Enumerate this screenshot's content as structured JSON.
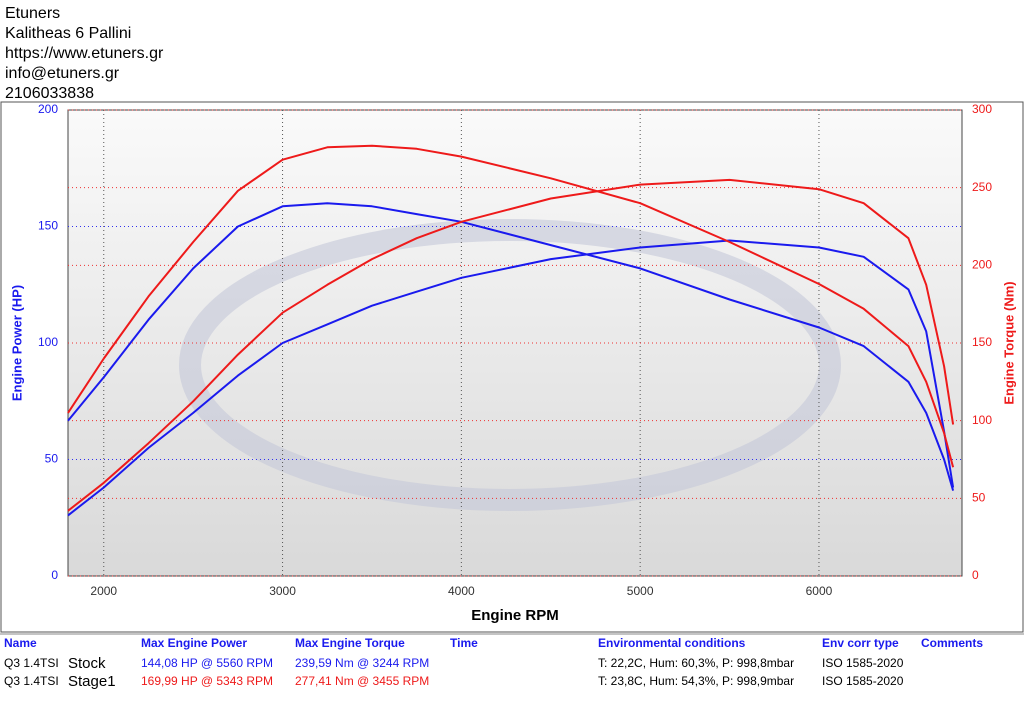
{
  "header": {
    "lines": [
      "Etuners",
      "Kalitheas 6 Pallini",
      "https://www.etuners.gr",
      "info@etuners.gr",
      "2106033838"
    ]
  },
  "chart_data": {
    "type": "line",
    "x_label": "Engine RPM",
    "y_label": "Engine Power (HP)",
    "y2_label": "Engine Torque (Nm)",
    "x": [
      1800,
      2000,
      2250,
      2500,
      2750,
      3000,
      3250,
      3500,
      3750,
      4000,
      4500,
      5000,
      5500,
      6000,
      6250,
      6500,
      6600,
      6700,
      6750
    ],
    "series": [
      {
        "name": "Stock",
        "color": "#1a1aee",
        "values": [
          26,
          38,
          55,
          70,
          86,
          100,
          108,
          116,
          122,
          128,
          136,
          141,
          144,
          141,
          137,
          123,
          105,
          62,
          38
        ]
      },
      {
        "color": "#1a1aee",
        "axis": "y2",
        "values": [
          100,
          128,
          165,
          198,
          225,
          238,
          240,
          238,
          233,
          228,
          213,
          198,
          178,
          160,
          148,
          125,
          105,
          75,
          55
        ]
      },
      {
        "name": "Stage1",
        "color": "#ee1a1a",
        "values": [
          28,
          40,
          57,
          75,
          95,
          113,
          125,
          136,
          145,
          152,
          162,
          168,
          170,
          166,
          160,
          145,
          125,
          90,
          65
        ]
      },
      {
        "color": "#ee1a1a",
        "axis": "y2",
        "values": [
          105,
          140,
          180,
          215,
          248,
          268,
          276,
          277,
          275,
          270,
          256,
          240,
          215,
          188,
          172,
          148,
          125,
          92,
          70
        ]
      }
    ],
    "xlim": [
      1800,
      6800
    ],
    "xticks": [
      2000,
      3000,
      4000,
      5000,
      6000
    ],
    "ylim": [
      0,
      200
    ],
    "yticks": [
      0,
      50,
      100,
      150,
      200
    ],
    "y2lim": [
      0,
      300
    ],
    "y2ticks": [
      0,
      50,
      100,
      150,
      200,
      250,
      300
    ],
    "grid": true
  },
  "table": {
    "header": [
      "Name",
      "Max Engine Power",
      "Max Engine Torque",
      "Time",
      "Environmental conditions",
      "Env corr type",
      "Comments"
    ],
    "rows": [
      {
        "name": "Q3 1.4TSI",
        "power": "144,08 HP @ 5560 RPM",
        "torque": "239,59 Nm @ 3244 RPM",
        "env": "T: 22,2C, Hum: 60,3%, P: 998,8mbar",
        "corr": "ISO 1585-2020"
      },
      {
        "name": "Q3 1.4TSI",
        "power": "169,99 HP @ 5343 RPM",
        "torque": "277,41 Nm @ 3455 RPM",
        "env": "T: 23,8C, Hum: 54,3%, P: 998,9mbar",
        "corr": "ISO 1585-2020"
      }
    ]
  }
}
